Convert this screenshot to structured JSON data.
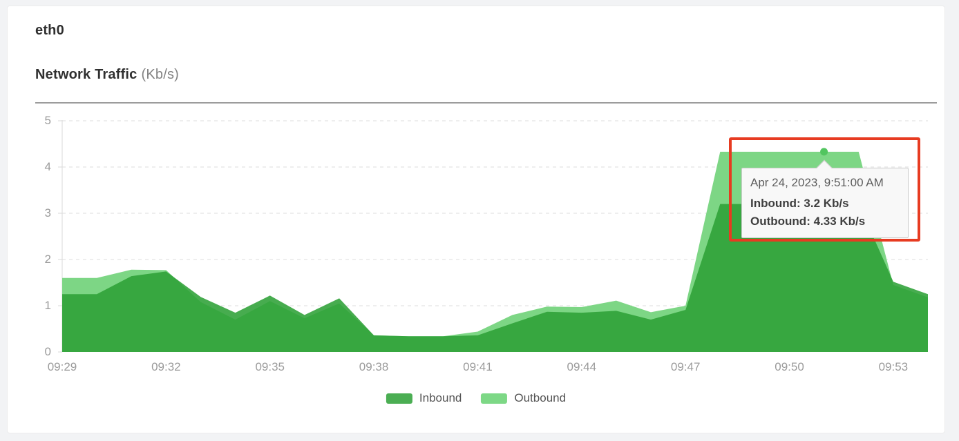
{
  "page": {
    "background": "#f2f3f5",
    "card_background": "#ffffff"
  },
  "header": {
    "title": "eth0",
    "subtitle": "Network Traffic",
    "subtitle_unit": "(Kb/s)"
  },
  "chart_data": {
    "type": "area",
    "title": "Network Traffic (Kb/s)",
    "interface": "eth0",
    "ylim": [
      0,
      5
    ],
    "y_tick_labels": [
      "0",
      "1",
      "2",
      "3",
      "4",
      "5"
    ],
    "x_tick_labels": [
      "09:29",
      "09:32",
      "09:35",
      "09:38",
      "09:41",
      "09:44",
      "09:47",
      "09:50",
      "09:53"
    ],
    "x_tick_every": 3,
    "grid": "horizontal-dashed",
    "grid_color": "#dedede",
    "axis_color": "#d9d9d9",
    "legend_position": "bottom-center",
    "x_times": [
      "09:29",
      "09:30",
      "09:31",
      "09:32",
      "09:33",
      "09:34",
      "09:35",
      "09:36",
      "09:37",
      "09:38",
      "09:39",
      "09:40",
      "09:41",
      "09:42",
      "09:43",
      "09:44",
      "09:45",
      "09:46",
      "09:47",
      "09:48",
      "09:49",
      "09:50",
      "09:51",
      "09:52",
      "09:53",
      "09:54"
    ],
    "series": [
      {
        "name": "Inbound",
        "legend_color": "#4bae53",
        "fill": "#2ea137",
        "fill_opacity": 0.88,
        "values": [
          1.25,
          1.25,
          1.64,
          1.74,
          1.19,
          0.85,
          1.22,
          0.8,
          1.16,
          0.36,
          0.34,
          0.34,
          0.36,
          0.62,
          0.87,
          0.85,
          0.89,
          0.7,
          0.91,
          3.2,
          3.2,
          3.2,
          3.2,
          3.2,
          1.52,
          1.25
        ]
      },
      {
        "name": "Outbound",
        "legend_color": "#7dd886",
        "fill": "#7dd685",
        "fill_opacity": 1,
        "values": [
          1.6,
          1.6,
          1.78,
          1.77,
          1.08,
          0.7,
          1.1,
          0.73,
          1.05,
          0.36,
          0.34,
          0.34,
          0.44,
          0.8,
          0.98,
          0.97,
          1.11,
          0.86,
          1.0,
          4.33,
          4.33,
          4.33,
          4.33,
          4.33,
          1.45,
          1.18
        ]
      }
    ],
    "highlight_point": {
      "time": "09:51",
      "inbound": 3.2,
      "outbound": 4.33,
      "marker_series": "Outbound",
      "marker_color": "#52c55f"
    }
  },
  "tooltip": {
    "timestamp": "Apr 24, 2023, 9:51:00 AM",
    "rows": [
      "Inbound: 3.2 Kb/s",
      "Outbound: 4.33 Kb/s"
    ]
  },
  "annotation": {
    "type": "highlight-rectangle",
    "color": "#e73b21"
  },
  "legend": {
    "items": [
      {
        "label": "Inbound",
        "color": "#4bae53"
      },
      {
        "label": "Outbound",
        "color": "#7dd886"
      }
    ]
  }
}
